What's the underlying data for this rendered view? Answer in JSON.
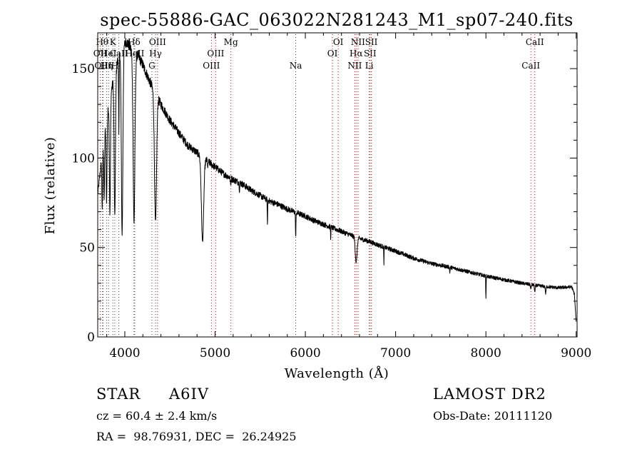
{
  "chart_data": {
    "type": "line",
    "title": "spec-55886-GAC_063022N281243_M1_sp07-240.fits",
    "xlabel": "Wavelength (Å)",
    "ylabel": "Flux (relative)",
    "xlim": [
      3700,
      9010
    ],
    "ylim": [
      0,
      170
    ],
    "x_ticks": [
      4000,
      5000,
      6000,
      7000,
      8000,
      9000
    ],
    "y_ticks": [
      0,
      50,
      100,
      150
    ],
    "continuum": [
      [
        3700,
        80
      ],
      [
        3780,
        115
      ],
      [
        3840,
        135
      ],
      [
        3900,
        150
      ],
      [
        3960,
        162
      ],
      [
        4020,
        165
      ],
      [
        4080,
        160
      ],
      [
        4150,
        157
      ],
      [
        4200,
        152
      ],
      [
        4250,
        146
      ],
      [
        4300,
        140
      ],
      [
        4400,
        130
      ],
      [
        4500,
        121
      ],
      [
        4600,
        114
      ],
      [
        4700,
        107
      ],
      [
        4800,
        103
      ],
      [
        4900,
        99
      ],
      [
        5000,
        95
      ],
      [
        5100,
        91
      ],
      [
        5200,
        88
      ],
      [
        5300,
        85.5
      ],
      [
        5400,
        82
      ],
      [
        5500,
        79
      ],
      [
        5600,
        76
      ],
      [
        5700,
        74
      ],
      [
        5800,
        71.5
      ],
      [
        5900,
        69.5
      ],
      [
        6000,
        67.5
      ],
      [
        6100,
        65
      ],
      [
        6200,
        63
      ],
      [
        6300,
        61
      ],
      [
        6400,
        59
      ],
      [
        6500,
        57
      ],
      [
        6600,
        55
      ],
      [
        6700,
        53.5
      ],
      [
        6800,
        51.5
      ],
      [
        7000,
        48
      ],
      [
        7200,
        44
      ],
      [
        7400,
        41
      ],
      [
        7600,
        39
      ],
      [
        7800,
        36.5
      ],
      [
        8000,
        34
      ],
      [
        8200,
        32
      ],
      [
        8400,
        30
      ],
      [
        8600,
        28.5
      ],
      [
        8800,
        27.5
      ],
      [
        8950,
        28
      ],
      [
        8980,
        24
      ],
      [
        9000,
        8
      ]
    ],
    "absorption_lines": [
      {
        "x": 3750,
        "depth": 30,
        "width": 6
      },
      {
        "x": 3771,
        "depth": 35,
        "width": 6
      },
      {
        "x": 3798,
        "depth": 45,
        "width": 7
      },
      {
        "x": 3835,
        "depth": 65,
        "width": 8
      },
      {
        "x": 3889,
        "depth": 80,
        "width": 10
      },
      {
        "x": 3934,
        "depth": 45,
        "width": 4
      },
      {
        "x": 3970,
        "depth": 105,
        "width": 12
      },
      {
        "x": 4102,
        "depth": 95,
        "width": 14
      },
      {
        "x": 4340,
        "depth": 72,
        "width": 16
      },
      {
        "x": 4861,
        "depth": 47,
        "width": 18
      },
      {
        "x": 4920,
        "depth": 4,
        "width": 4
      },
      {
        "x": 5172,
        "depth": 4,
        "width": 5
      },
      {
        "x": 5270,
        "depth": 4,
        "width": 4
      },
      {
        "x": 5580,
        "depth": 15,
        "width": 3
      },
      {
        "x": 5893,
        "depth": 14,
        "width": 4
      },
      {
        "x": 6280,
        "depth": 6,
        "width": 3
      },
      {
        "x": 6563,
        "depth": 14,
        "width": 14
      },
      {
        "x": 6870,
        "depth": 9,
        "width": 3
      },
      {
        "x": 7600,
        "depth": 3,
        "width": 4
      },
      {
        "x": 8000,
        "depth": 13,
        "width": 3
      },
      {
        "x": 8498,
        "depth": 3,
        "width": 5
      },
      {
        "x": 8542,
        "depth": 4,
        "width": 6
      },
      {
        "x": 8662,
        "depth": 4,
        "width": 6
      }
    ],
    "line_markers": [
      {
        "x": 3727,
        "label": "OII",
        "row": 2,
        "color": "#d00000"
      },
      {
        "x": 3750,
        "label": "Hθ",
        "row": 1,
        "color": "#444444"
      },
      {
        "x": 3760,
        "label": "OIII",
        "row": 3,
        "color": "#444444"
      },
      {
        "x": 3798,
        "label": "Hη",
        "row": 3,
        "color": "#444444"
      },
      {
        "x": 3820,
        "label": "HeI",
        "row": 2,
        "color": "#444444"
      },
      {
        "x": 3868,
        "label": "K",
        "row": 1,
        "color": "#444444"
      },
      {
        "x": 3889,
        "label": "H",
        "row": 3,
        "color": "#444444"
      },
      {
        "x": 3934,
        "label": "CaII",
        "row": 2,
        "color": "#444444"
      },
      {
        "x": 4102,
        "label": "Hδ",
        "row": 1,
        "color": "#444444"
      },
      {
        "x": 4110,
        "label": "HeII",
        "row": 2,
        "color": "#444444"
      },
      {
        "x": 4300,
        "label": "G",
        "row": 3,
        "color": "#444444"
      },
      {
        "x": 4340,
        "label": "Hγ",
        "row": 2,
        "color": "#444444"
      },
      {
        "x": 4363,
        "label": "OIII",
        "row": 1,
        "color": "#d00000"
      },
      {
        "x": 4959,
        "label": "OIII",
        "row": 3,
        "color": "#d00000"
      },
      {
        "x": 5007,
        "label": "OIII",
        "row": 2,
        "color": "#d00000"
      },
      {
        "x": 5175,
        "label": "Mg",
        "row": 1,
        "color": "#d00000"
      },
      {
        "x": 5893,
        "label": "Na",
        "row": 3,
        "color": "#444444"
      },
      {
        "x": 6300,
        "label": "OI",
        "row": 2,
        "color": "#d00000"
      },
      {
        "x": 6364,
        "label": "OI",
        "row": 1,
        "color": "#d00000"
      },
      {
        "x": 6548,
        "label": "NII",
        "row": 3,
        "color": "#d00000"
      },
      {
        "x": 6563,
        "label": "Hα",
        "row": 2,
        "color": "#d00000"
      },
      {
        "x": 6583,
        "label": "NII",
        "row": 1,
        "color": "#d00000"
      },
      {
        "x": 6708,
        "label": "Li",
        "row": 3,
        "color": "#444444"
      },
      {
        "x": 6717,
        "label": "SII",
        "row": 2,
        "color": "#d00000"
      },
      {
        "x": 6731,
        "label": "SII",
        "row": 1,
        "color": "#d00000"
      },
      {
        "x": 8498,
        "label": "CaII",
        "row": 3,
        "color": "#d00000"
      },
      {
        "x": 8542,
        "label": "CaII",
        "row": 1,
        "color": "#d00000"
      }
    ]
  },
  "info": {
    "object_class": "STAR",
    "subclass": "A6IV",
    "survey": "LAMOST DR2",
    "cz": "cz = 60.4 ± 2.4 km/s",
    "obs_date": "Obs-Date: 20111120",
    "coords": "RA =  98.76931, DEC =  26.24925"
  }
}
